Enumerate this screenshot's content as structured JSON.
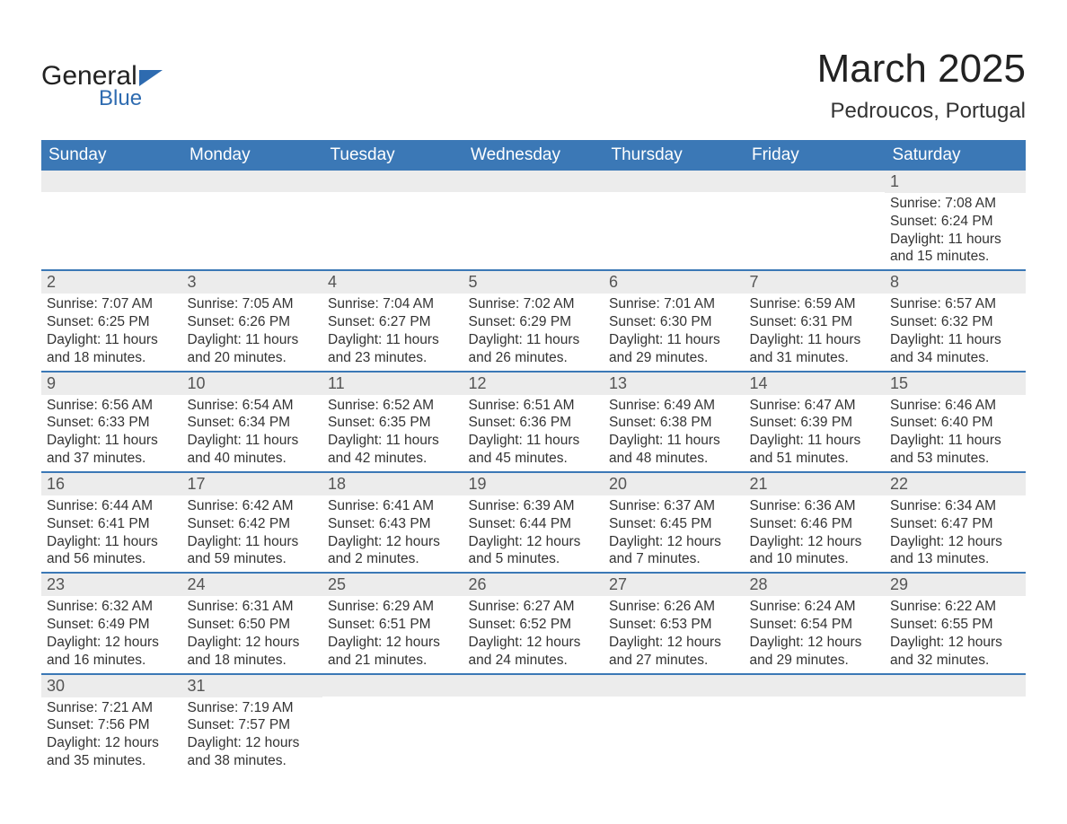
{
  "logo": {
    "word1": "General",
    "word2": "Blue"
  },
  "title": "March 2025",
  "subtitle": "Pedroucos, Portugal",
  "colors": {
    "header_bg": "#3b78b6",
    "header_text": "#ffffff",
    "row_divider": "#3b78b6",
    "daynum_bg": "#ececec",
    "text": "#333333",
    "logo_accent": "#2e6bb0"
  },
  "typography": {
    "title_fontsize": 44,
    "subtitle_fontsize": 24,
    "header_fontsize": 19,
    "daynum_fontsize": 18,
    "body_fontsize": 15.5,
    "font_family": "Arial"
  },
  "day_labels": [
    "Sunday",
    "Monday",
    "Tuesday",
    "Wednesday",
    "Thursday",
    "Friday",
    "Saturday"
  ],
  "layout": {
    "columns": 7,
    "rows": 6,
    "first_day_column": 6
  },
  "days": [
    {
      "n": "1",
      "sunrise": "Sunrise: 7:08 AM",
      "sunset": "Sunset: 6:24 PM",
      "dl1": "Daylight: 11 hours",
      "dl2": "and 15 minutes."
    },
    {
      "n": "2",
      "sunrise": "Sunrise: 7:07 AM",
      "sunset": "Sunset: 6:25 PM",
      "dl1": "Daylight: 11 hours",
      "dl2": "and 18 minutes."
    },
    {
      "n": "3",
      "sunrise": "Sunrise: 7:05 AM",
      "sunset": "Sunset: 6:26 PM",
      "dl1": "Daylight: 11 hours",
      "dl2": "and 20 minutes."
    },
    {
      "n": "4",
      "sunrise": "Sunrise: 7:04 AM",
      "sunset": "Sunset: 6:27 PM",
      "dl1": "Daylight: 11 hours",
      "dl2": "and 23 minutes."
    },
    {
      "n": "5",
      "sunrise": "Sunrise: 7:02 AM",
      "sunset": "Sunset: 6:29 PM",
      "dl1": "Daylight: 11 hours",
      "dl2": "and 26 minutes."
    },
    {
      "n": "6",
      "sunrise": "Sunrise: 7:01 AM",
      "sunset": "Sunset: 6:30 PM",
      "dl1": "Daylight: 11 hours",
      "dl2": "and 29 minutes."
    },
    {
      "n": "7",
      "sunrise": "Sunrise: 6:59 AM",
      "sunset": "Sunset: 6:31 PM",
      "dl1": "Daylight: 11 hours",
      "dl2": "and 31 minutes."
    },
    {
      "n": "8",
      "sunrise": "Sunrise: 6:57 AM",
      "sunset": "Sunset: 6:32 PM",
      "dl1": "Daylight: 11 hours",
      "dl2": "and 34 minutes."
    },
    {
      "n": "9",
      "sunrise": "Sunrise: 6:56 AM",
      "sunset": "Sunset: 6:33 PM",
      "dl1": "Daylight: 11 hours",
      "dl2": "and 37 minutes."
    },
    {
      "n": "10",
      "sunrise": "Sunrise: 6:54 AM",
      "sunset": "Sunset: 6:34 PM",
      "dl1": "Daylight: 11 hours",
      "dl2": "and 40 minutes."
    },
    {
      "n": "11",
      "sunrise": "Sunrise: 6:52 AM",
      "sunset": "Sunset: 6:35 PM",
      "dl1": "Daylight: 11 hours",
      "dl2": "and 42 minutes."
    },
    {
      "n": "12",
      "sunrise": "Sunrise: 6:51 AM",
      "sunset": "Sunset: 6:36 PM",
      "dl1": "Daylight: 11 hours",
      "dl2": "and 45 minutes."
    },
    {
      "n": "13",
      "sunrise": "Sunrise: 6:49 AM",
      "sunset": "Sunset: 6:38 PM",
      "dl1": "Daylight: 11 hours",
      "dl2": "and 48 minutes."
    },
    {
      "n": "14",
      "sunrise": "Sunrise: 6:47 AM",
      "sunset": "Sunset: 6:39 PM",
      "dl1": "Daylight: 11 hours",
      "dl2": "and 51 minutes."
    },
    {
      "n": "15",
      "sunrise": "Sunrise: 6:46 AM",
      "sunset": "Sunset: 6:40 PM",
      "dl1": "Daylight: 11 hours",
      "dl2": "and 53 minutes."
    },
    {
      "n": "16",
      "sunrise": "Sunrise: 6:44 AM",
      "sunset": "Sunset: 6:41 PM",
      "dl1": "Daylight: 11 hours",
      "dl2": "and 56 minutes."
    },
    {
      "n": "17",
      "sunrise": "Sunrise: 6:42 AM",
      "sunset": "Sunset: 6:42 PM",
      "dl1": "Daylight: 11 hours",
      "dl2": "and 59 minutes."
    },
    {
      "n": "18",
      "sunrise": "Sunrise: 6:41 AM",
      "sunset": "Sunset: 6:43 PM",
      "dl1": "Daylight: 12 hours",
      "dl2": "and 2 minutes."
    },
    {
      "n": "19",
      "sunrise": "Sunrise: 6:39 AM",
      "sunset": "Sunset: 6:44 PM",
      "dl1": "Daylight: 12 hours",
      "dl2": "and 5 minutes."
    },
    {
      "n": "20",
      "sunrise": "Sunrise: 6:37 AM",
      "sunset": "Sunset: 6:45 PM",
      "dl1": "Daylight: 12 hours",
      "dl2": "and 7 minutes."
    },
    {
      "n": "21",
      "sunrise": "Sunrise: 6:36 AM",
      "sunset": "Sunset: 6:46 PM",
      "dl1": "Daylight: 12 hours",
      "dl2": "and 10 minutes."
    },
    {
      "n": "22",
      "sunrise": "Sunrise: 6:34 AM",
      "sunset": "Sunset: 6:47 PM",
      "dl1": "Daylight: 12 hours",
      "dl2": "and 13 minutes."
    },
    {
      "n": "23",
      "sunrise": "Sunrise: 6:32 AM",
      "sunset": "Sunset: 6:49 PM",
      "dl1": "Daylight: 12 hours",
      "dl2": "and 16 minutes."
    },
    {
      "n": "24",
      "sunrise": "Sunrise: 6:31 AM",
      "sunset": "Sunset: 6:50 PM",
      "dl1": "Daylight: 12 hours",
      "dl2": "and 18 minutes."
    },
    {
      "n": "25",
      "sunrise": "Sunrise: 6:29 AM",
      "sunset": "Sunset: 6:51 PM",
      "dl1": "Daylight: 12 hours",
      "dl2": "and 21 minutes."
    },
    {
      "n": "26",
      "sunrise": "Sunrise: 6:27 AM",
      "sunset": "Sunset: 6:52 PM",
      "dl1": "Daylight: 12 hours",
      "dl2": "and 24 minutes."
    },
    {
      "n": "27",
      "sunrise": "Sunrise: 6:26 AM",
      "sunset": "Sunset: 6:53 PM",
      "dl1": "Daylight: 12 hours",
      "dl2": "and 27 minutes."
    },
    {
      "n": "28",
      "sunrise": "Sunrise: 6:24 AM",
      "sunset": "Sunset: 6:54 PM",
      "dl1": "Daylight: 12 hours",
      "dl2": "and 29 minutes."
    },
    {
      "n": "29",
      "sunrise": "Sunrise: 6:22 AM",
      "sunset": "Sunset: 6:55 PM",
      "dl1": "Daylight: 12 hours",
      "dl2": "and 32 minutes."
    },
    {
      "n": "30",
      "sunrise": "Sunrise: 7:21 AM",
      "sunset": "Sunset: 7:56 PM",
      "dl1": "Daylight: 12 hours",
      "dl2": "and 35 minutes."
    },
    {
      "n": "31",
      "sunrise": "Sunrise: 7:19 AM",
      "sunset": "Sunset: 7:57 PM",
      "dl1": "Daylight: 12 hours",
      "dl2": "and 38 minutes."
    }
  ]
}
